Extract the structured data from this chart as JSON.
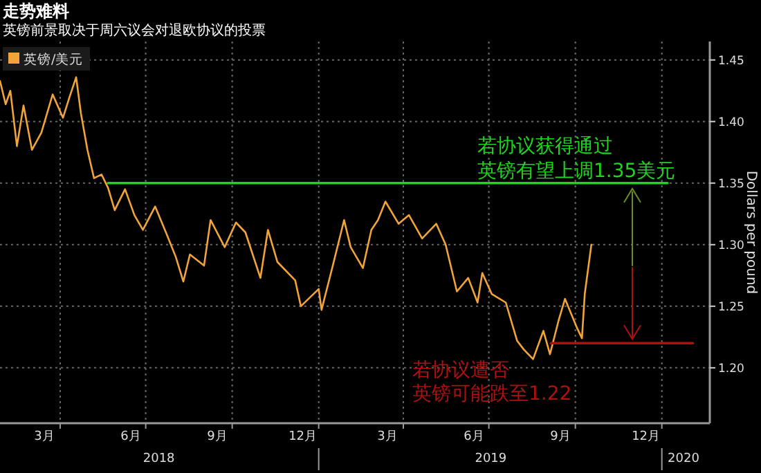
{
  "chart_data": {
    "type": "line",
    "title": "走势难料",
    "subtitle": "英镑前景取决于周六议会对退欧协议的投票",
    "ylabel": "Dollars per pound",
    "x": [
      "2018-01-27",
      "2018-02-02",
      "2018-02-07",
      "2018-02-14",
      "2018-02-21",
      "2018-03-02",
      "2018-03-12",
      "2018-03-24",
      "2018-04-04",
      "2018-04-11",
      "2018-04-18",
      "2018-04-23",
      "2018-04-30",
      "2018-05-07",
      "2018-05-15",
      "2018-05-22",
      "2018-05-29",
      "2018-06-09",
      "2018-06-19",
      "2018-06-28",
      "2018-07-11",
      "2018-07-23",
      "2018-08-02",
      "2018-08-10",
      "2018-08-17",
      "2018-09-01",
      "2018-09-08",
      "2018-09-23",
      "2018-10-05",
      "2018-10-15",
      "2018-10-31",
      "2018-11-08",
      "2018-11-18",
      "2018-12-07",
      "2018-12-13",
      "2019-01-01",
      "2019-01-04",
      "2019-01-16",
      "2019-01-28",
      "2019-02-04",
      "2019-02-17",
      "2019-02-26",
      "2019-03-05",
      "2019-03-13",
      "2019-03-27",
      "2019-04-07",
      "2019-04-21",
      "2019-05-06",
      "2019-05-16",
      "2019-05-28",
      "2019-06-09",
      "2019-06-19",
      "2019-06-24",
      "2019-07-04",
      "2019-07-19",
      "2019-07-31",
      "2019-08-07",
      "2019-08-17",
      "2019-08-28",
      "2019-09-04",
      "2019-09-13",
      "2019-09-20",
      "2019-10-03",
      "2019-10-08",
      "2019-10-11",
      "2019-10-18"
    ],
    "series": [
      {
        "name": "英镑/美元",
        "color": "#f0a43a",
        "values": [
          1.433,
          1.414,
          1.425,
          1.38,
          1.413,
          1.377,
          1.391,
          1.422,
          1.403,
          1.42,
          1.436,
          1.407,
          1.377,
          1.354,
          1.357,
          1.346,
          1.328,
          1.345,
          1.324,
          1.312,
          1.331,
          1.309,
          1.29,
          1.27,
          1.292,
          1.283,
          1.32,
          1.298,
          1.318,
          1.31,
          1.273,
          1.312,
          1.286,
          1.271,
          1.25,
          1.264,
          1.247,
          1.283,
          1.32,
          1.298,
          1.281,
          1.312,
          1.32,
          1.335,
          1.317,
          1.324,
          1.305,
          1.317,
          1.3,
          1.262,
          1.273,
          1.253,
          1.277,
          1.26,
          1.253,
          1.222,
          1.215,
          1.207,
          1.23,
          1.211,
          1.238,
          1.256,
          1.232,
          1.224,
          1.26,
          1.3
        ]
      },
      {
        "color": "#1ed41e",
        "x": [
          "2018-05-22",
          "2020-01-07"
        ],
        "values": [
          1.35,
          1.35
        ]
      },
      {
        "color": "#b01010",
        "x": [
          "2019-09-05",
          "2020-02-03"
        ],
        "values": [
          1.22,
          1.22
        ]
      }
    ],
    "xlim": [
      "2018-01-27",
      "2020-02-21"
    ],
    "xticks": [
      {
        "value": "2018-03-15",
        "label": "3月"
      },
      {
        "value": "2018-04-01",
        "label": null
      },
      {
        "value": "2018-06-15",
        "label": "6月"
      },
      {
        "value": "2018-07-01",
        "label": null
      },
      {
        "value": "2018-09-15",
        "label": "9月"
      },
      {
        "value": "2018-10-01",
        "label": null
      },
      {
        "value": "2018-12-15",
        "label": "12月"
      },
      {
        "value": "2019-01-01",
        "label": null
      },
      {
        "value": "2019-03-15",
        "label": "3月"
      },
      {
        "value": "2019-04-01",
        "label": null
      },
      {
        "value": "2019-06-15",
        "label": "6月"
      },
      {
        "value": "2019-07-01",
        "label": null
      },
      {
        "value": "2019-09-15",
        "label": "9月"
      },
      {
        "value": "2019-10-01",
        "label": null
      },
      {
        "value": "2019-12-15",
        "label": "12月"
      },
      {
        "value": "2020-01-01",
        "label": null
      }
    ],
    "x2ticks": [
      {
        "value": "2018-07-15",
        "label": "2018"
      },
      {
        "value": "2019-01-01",
        "label": null
      },
      {
        "value": "2019-07-03",
        "label": "2019"
      },
      {
        "value": "2020-01-01",
        "label": null
      },
      {
        "value": "2020-01-24",
        "label": "2020"
      }
    ],
    "x2lim": [
      "2018-01-27",
      "2020-02-21"
    ],
    "ylim": [
      1.155,
      1.465
    ],
    "yticks": [
      {
        "value": 1.2,
        "label": "1.20"
      },
      1.25,
      {
        "value": 1.3,
        "label": "1.30"
      },
      1.35,
      {
        "value": 1.4,
        "label": "1.40"
      },
      1.45
    ],
    "grid": true,
    "legend": "top left",
    "annotations": [
      "若协议获得通过",
      "英镑有望上调1.35美元",
      "若协议遭否",
      "英镑可能跌至1.22"
    ]
  }
}
